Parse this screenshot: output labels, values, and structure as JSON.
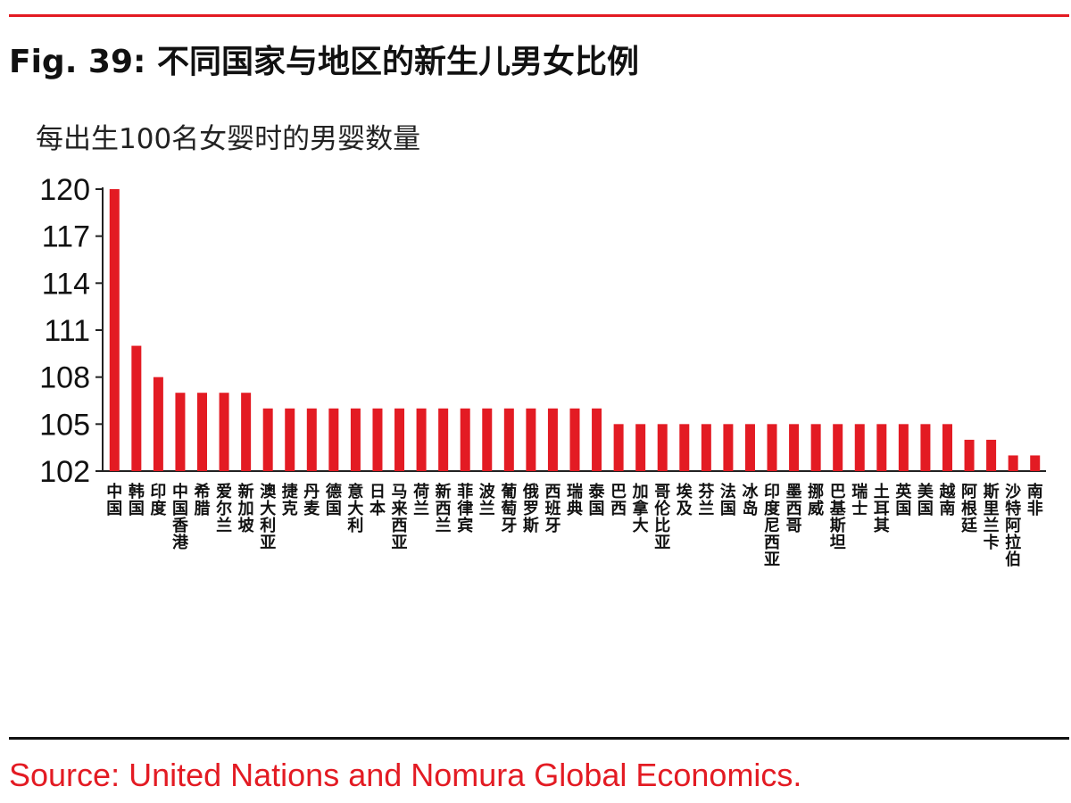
{
  "figure": {
    "title": "Fig. 39: 不同国家与地区的新生儿男女比例",
    "source": "Source: United Nations and Nomura Global Economics."
  },
  "colors": {
    "bar": "#e31b23",
    "rule_top": "#e31b23",
    "rule_bottom": "#111111",
    "source_text": "#e31b23",
    "axis": "#222222"
  },
  "chart_data": {
    "type": "bar",
    "title": "",
    "ylabel": "每出生100名女婴时的男婴数量",
    "xlabel": "",
    "ylim": [
      102,
      120
    ],
    "yticks": [
      102,
      105,
      108,
      111,
      114,
      117,
      120
    ],
    "grid": false,
    "legend": "none",
    "categories": [
      "中国",
      "韩国",
      "印度",
      "中国香港",
      "希腊",
      "爱尔兰",
      "新加坡",
      "澳大利亚",
      "捷克",
      "丹麦",
      "德国",
      "意大利",
      "日本",
      "马来西亚",
      "荷兰",
      "新西兰",
      "菲律宾",
      "波兰",
      "葡萄牙",
      "俄罗斯",
      "西班牙",
      "瑞典",
      "泰国",
      "巴西",
      "加拿大",
      "哥伦比亚",
      "埃及",
      "芬兰",
      "法国",
      "冰岛",
      "印度尼西亚",
      "墨西哥",
      "挪威",
      "巴基斯坦",
      "瑞士",
      "土耳其",
      "英国",
      "美国",
      "越南",
      "阿根廷",
      "斯里兰卡",
      "沙特阿拉伯",
      "南非"
    ],
    "values": [
      120,
      110,
      108,
      107,
      107,
      107,
      107,
      106,
      106,
      106,
      106,
      106,
      106,
      106,
      106,
      106,
      106,
      106,
      106,
      106,
      106,
      106,
      106,
      105,
      105,
      105,
      105,
      105,
      105,
      105,
      105,
      105,
      105,
      105,
      105,
      105,
      105,
      105,
      105,
      104,
      104,
      103,
      103
    ]
  }
}
